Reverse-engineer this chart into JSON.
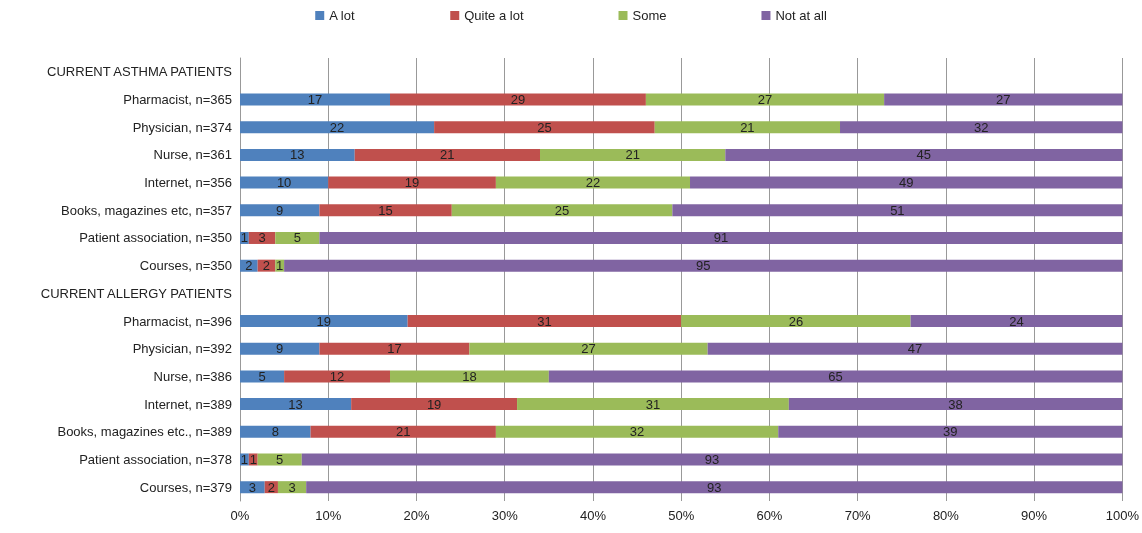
{
  "chart_data": {
    "type": "bar",
    "orientation": "horizontal",
    "stacked": true,
    "categories": [
      "CURRENT ASTHMA PATIENTS",
      "Pharmacist, n=365",
      "Physician, n=374",
      "Nurse, n=361",
      "Internet, n=356",
      "Books, magazines etc, n=357",
      "Patient association, n=350",
      "Courses, n=350",
      "CURRENT ALLERGY PATIENTS",
      "Pharmacist, n=396",
      "Physician, n=392",
      "Nurse, n=386",
      "Internet, n=389",
      "Books, magazines etc., n=389",
      "Patient association, n=378",
      "Courses, n=379"
    ],
    "series": [
      {
        "name": "A lot",
        "color": "#4f81bd",
        "values": [
          null,
          17,
          22,
          13,
          10,
          9,
          1,
          2,
          null,
          19,
          9,
          5,
          12.6,
          8,
          1,
          2.8
        ],
        "value_labels": [
          null,
          "17",
          "22",
          "13",
          "10",
          "9",
          "1",
          "2",
          null,
          "19",
          "9",
          "5",
          "13",
          "8",
          "1",
          "3"
        ]
      },
      {
        "name": "Quite a lot",
        "color": "#c0504d",
        "values": [
          null,
          29,
          25,
          21,
          19,
          15,
          3,
          2,
          null,
          31,
          17,
          12,
          18.8,
          21,
          1,
          1.5
        ],
        "value_labels": [
          null,
          "29",
          "25",
          "21",
          "19",
          "15",
          "3",
          "2",
          null,
          "31",
          "17",
          "12",
          "19",
          "21",
          "1",
          "2"
        ]
      },
      {
        "name": "Some",
        "color": "#9bbb59",
        "values": [
          null,
          27,
          21,
          21,
          22,
          25,
          5,
          1,
          null,
          26,
          27,
          18,
          30.8,
          32,
          5,
          3.2
        ],
        "value_labels": [
          null,
          "27",
          "21",
          "21",
          "22",
          "25",
          "5",
          "1",
          null,
          "26",
          "27",
          "18",
          "31",
          "32",
          "5",
          "3"
        ]
      },
      {
        "name": "Not at all",
        "color": "#8064a2",
        "values": [
          null,
          27,
          32,
          45,
          49,
          51,
          91,
          95,
          null,
          24,
          47,
          65,
          37.8,
          39,
          93,
          92.5
        ],
        "value_labels": [
          null,
          "27",
          "32",
          "45",
          "49",
          "51",
          "91",
          "95",
          null,
          "24",
          "47",
          "65",
          "38",
          "39",
          "93",
          "93"
        ]
      }
    ],
    "xlim": [
      0,
      100
    ],
    "xticks": [
      {
        "value": 0,
        "label": "0%"
      },
      {
        "value": 10,
        "label": "10%"
      },
      {
        "value": 20,
        "label": "20%"
      },
      {
        "value": 30,
        "label": "30%"
      },
      {
        "value": 40,
        "label": "40%"
      },
      {
        "value": 50,
        "label": "50%"
      },
      {
        "value": 60,
        "label": "60%"
      },
      {
        "value": 70,
        "label": "70%"
      },
      {
        "value": 80,
        "label": "80%"
      },
      {
        "value": 90,
        "label": "90%"
      },
      {
        "value": 100,
        "label": "100%"
      }
    ],
    "grid": "x",
    "legend": "top"
  }
}
